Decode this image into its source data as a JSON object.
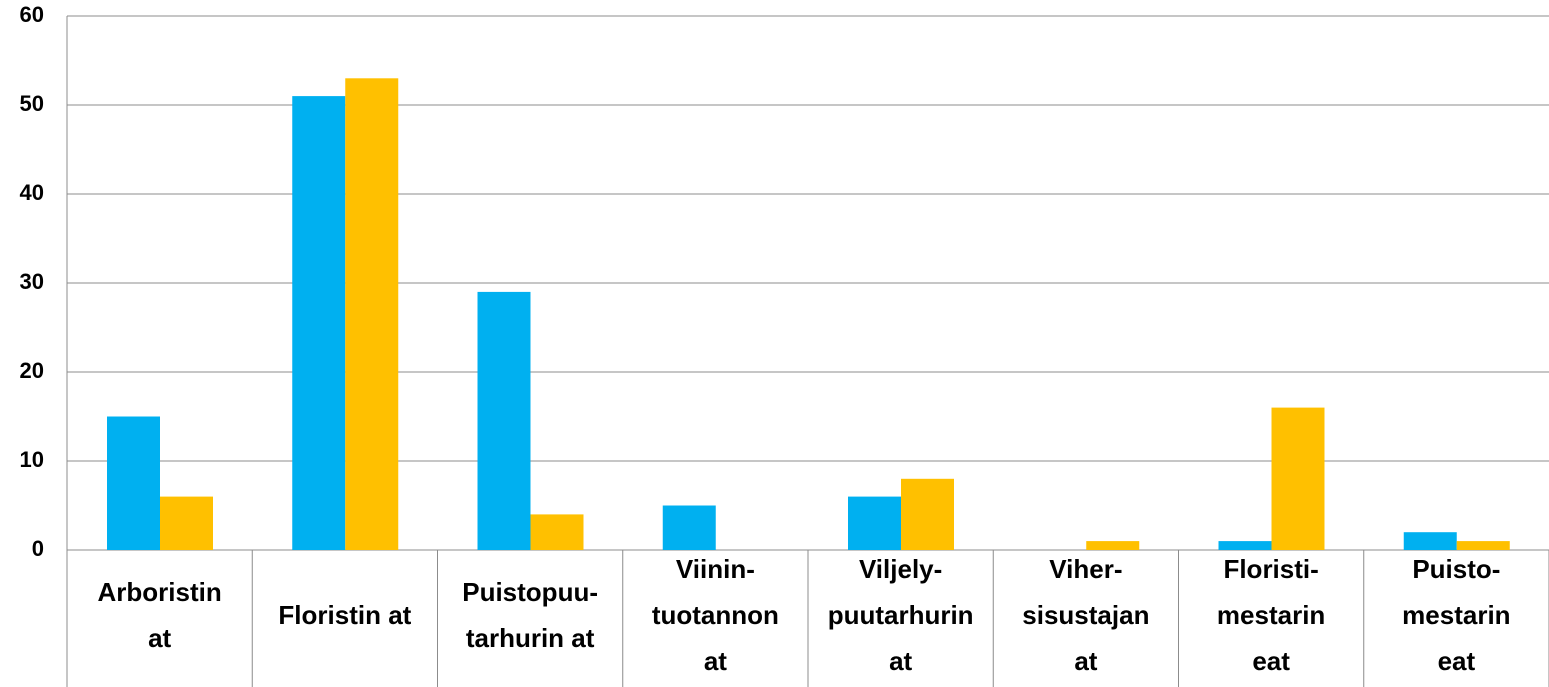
{
  "chart_data": {
    "type": "bar",
    "categories": [
      [
        "Arboristin",
        "at"
      ],
      [
        "Floristin at"
      ],
      [
        "Puistopuu-",
        "tarhurin at"
      ],
      [
        "Viinin-",
        "tuotannon",
        "at"
      ],
      [
        "Viljely-",
        "puutarhurin",
        "at"
      ],
      [
        "Viher-",
        "sisustajan",
        "at"
      ],
      [
        "Floristi-",
        "mestarin",
        "eat"
      ],
      [
        "Puisto-",
        "mestarin",
        "eat"
      ]
    ],
    "series": [
      {
        "color": "#00b0f0",
        "values": [
          15,
          51,
          29,
          5,
          6,
          0,
          1,
          2
        ]
      },
      {
        "color": "#ffc000",
        "values": [
          6,
          53,
          4,
          0,
          8,
          1,
          16,
          1
        ]
      }
    ],
    "ylim": [
      0,
      60
    ],
    "yticks": [
      0,
      10,
      20,
      30,
      40,
      50,
      60
    ],
    "grid": true
  }
}
